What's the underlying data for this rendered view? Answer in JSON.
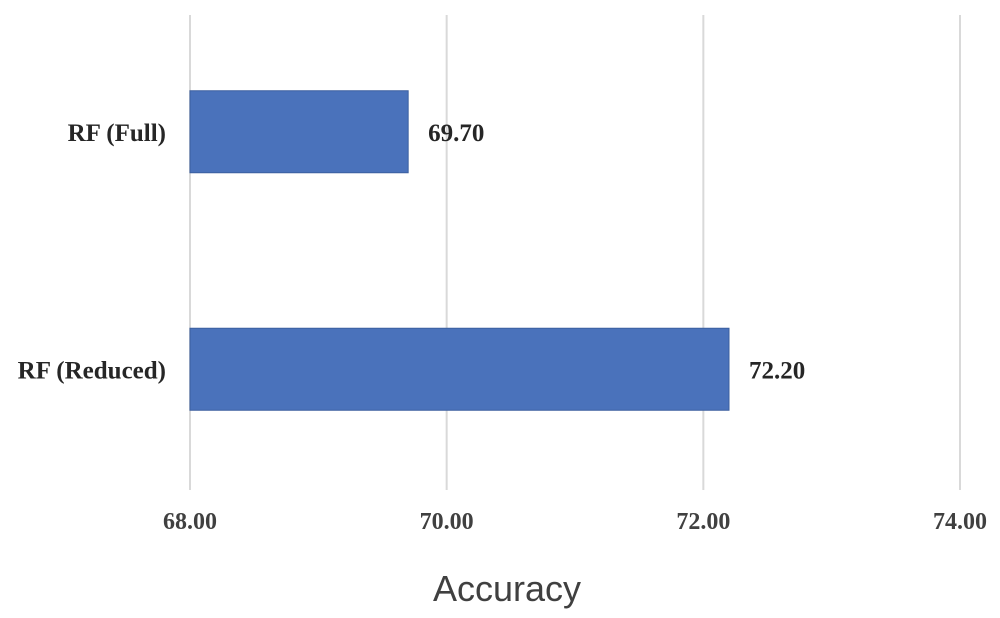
{
  "chart_data": {
    "type": "bar",
    "orientation": "horizontal",
    "categories": [
      "RF (Full)",
      "RF (Reduced)"
    ],
    "values": [
      69.7,
      72.2
    ],
    "data_labels": [
      "69.70",
      "72.20"
    ],
    "xlabel": "Accuracy",
    "ylabel": "",
    "title": "",
    "xlim": [
      68,
      74
    ],
    "x_ticks": [
      68,
      70,
      72,
      74
    ],
    "x_tick_labels": [
      "68.00",
      "70.00",
      "72.00",
      "74.00"
    ],
    "grid": "vertical",
    "legend": "none",
    "colors": {
      "bar": "#4a72bb",
      "gridline": "#d9d9d9",
      "text": "#262626"
    }
  }
}
